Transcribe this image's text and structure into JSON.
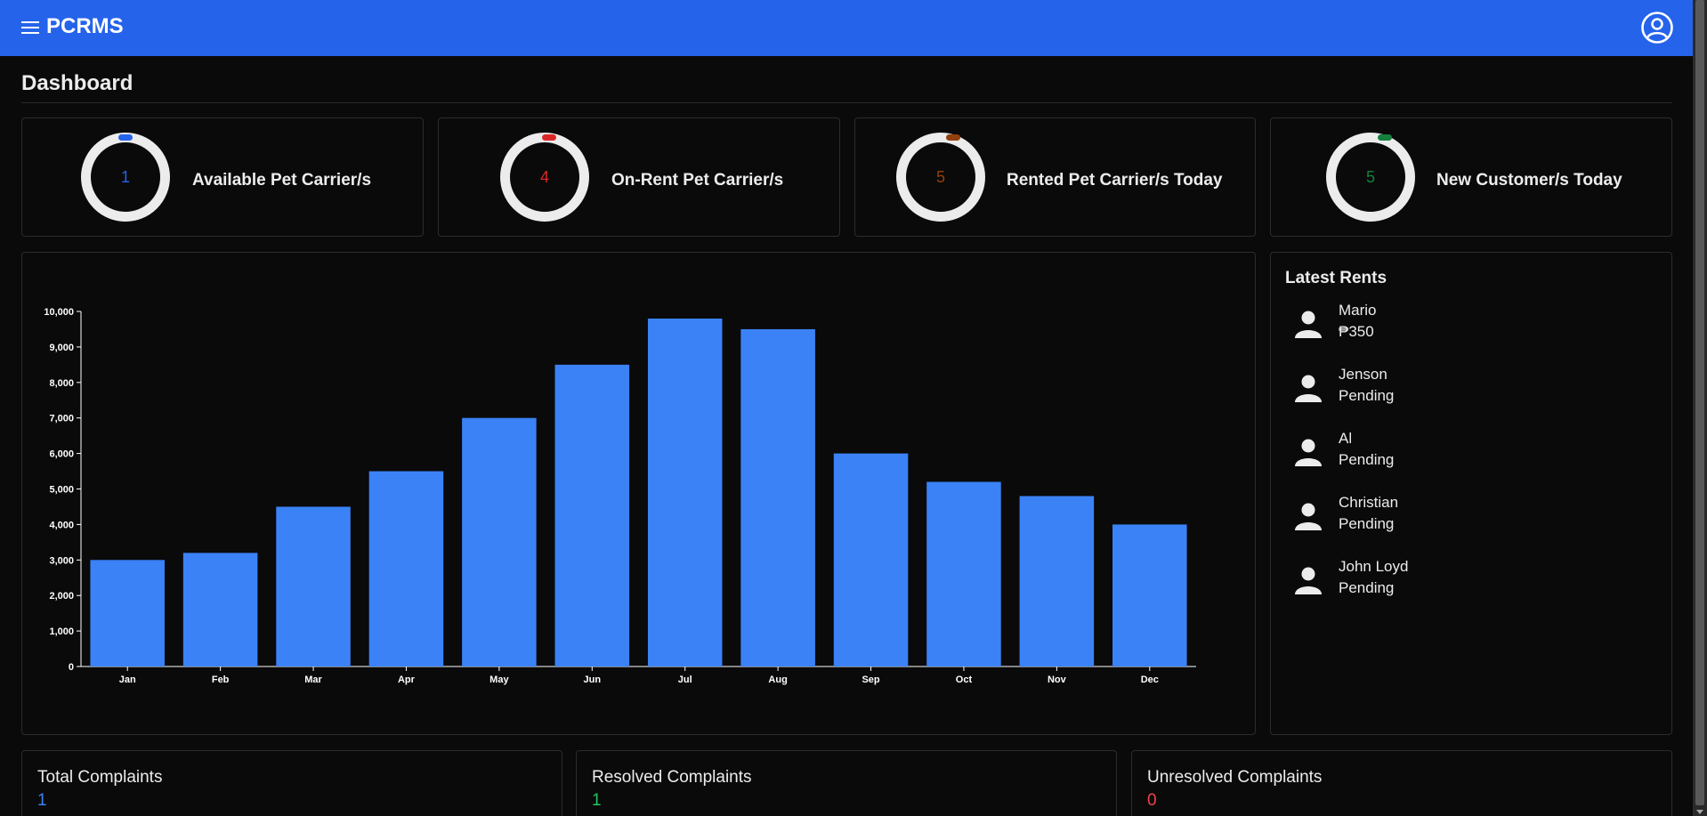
{
  "header": {
    "brand": "PCRMS"
  },
  "page": {
    "title": "Dashboard"
  },
  "stats": [
    {
      "value": "1",
      "label": "Available Pet Carrier/s",
      "color": "#2563eb"
    },
    {
      "value": "4",
      "label": "On-Rent Pet Carrier/s",
      "color": "#dc2626"
    },
    {
      "value": "5",
      "label": "Rented Pet Carrier/s Today",
      "color": "#92400e"
    },
    {
      "value": "5",
      "label": "New Customer/s Today",
      "color": "#15803d"
    }
  ],
  "chart_data": {
    "type": "bar",
    "categories": [
      "Jan",
      "Feb",
      "Mar",
      "Apr",
      "May",
      "Jun",
      "Jul",
      "Aug",
      "Sep",
      "Oct",
      "Nov",
      "Dec"
    ],
    "values": [
      3000,
      3200,
      4500,
      5500,
      7000,
      8500,
      9800,
      9500,
      6000,
      5200,
      4800,
      4000
    ],
    "title": "",
    "xlabel": "",
    "ylabel": "",
    "ylim": [
      0,
      10000
    ],
    "yticks": [
      "0",
      "1,000",
      "2,000",
      "3,000",
      "4,000",
      "5,000",
      "6,000",
      "7,000",
      "8,000",
      "9,000",
      "10,000"
    ],
    "bar_color": "#3b82f6",
    "grid": false
  },
  "latest_rents": {
    "title": "Latest Rents",
    "items": [
      {
        "name": "Mario",
        "status": "₱350"
      },
      {
        "name": "Jenson",
        "status": "Pending"
      },
      {
        "name": "Al",
        "status": "Pending"
      },
      {
        "name": "Christian",
        "status": "Pending"
      },
      {
        "name": "John Loyd",
        "status": "Pending"
      }
    ]
  },
  "complaints": [
    {
      "label": "Total Complaints",
      "value": "1",
      "color": "#3b82f6"
    },
    {
      "label": "Resolved Complaints",
      "value": "1",
      "color": "#22c55e"
    },
    {
      "label": "Unresolved Complaints",
      "value": "0",
      "color": "#ef4444"
    }
  ]
}
